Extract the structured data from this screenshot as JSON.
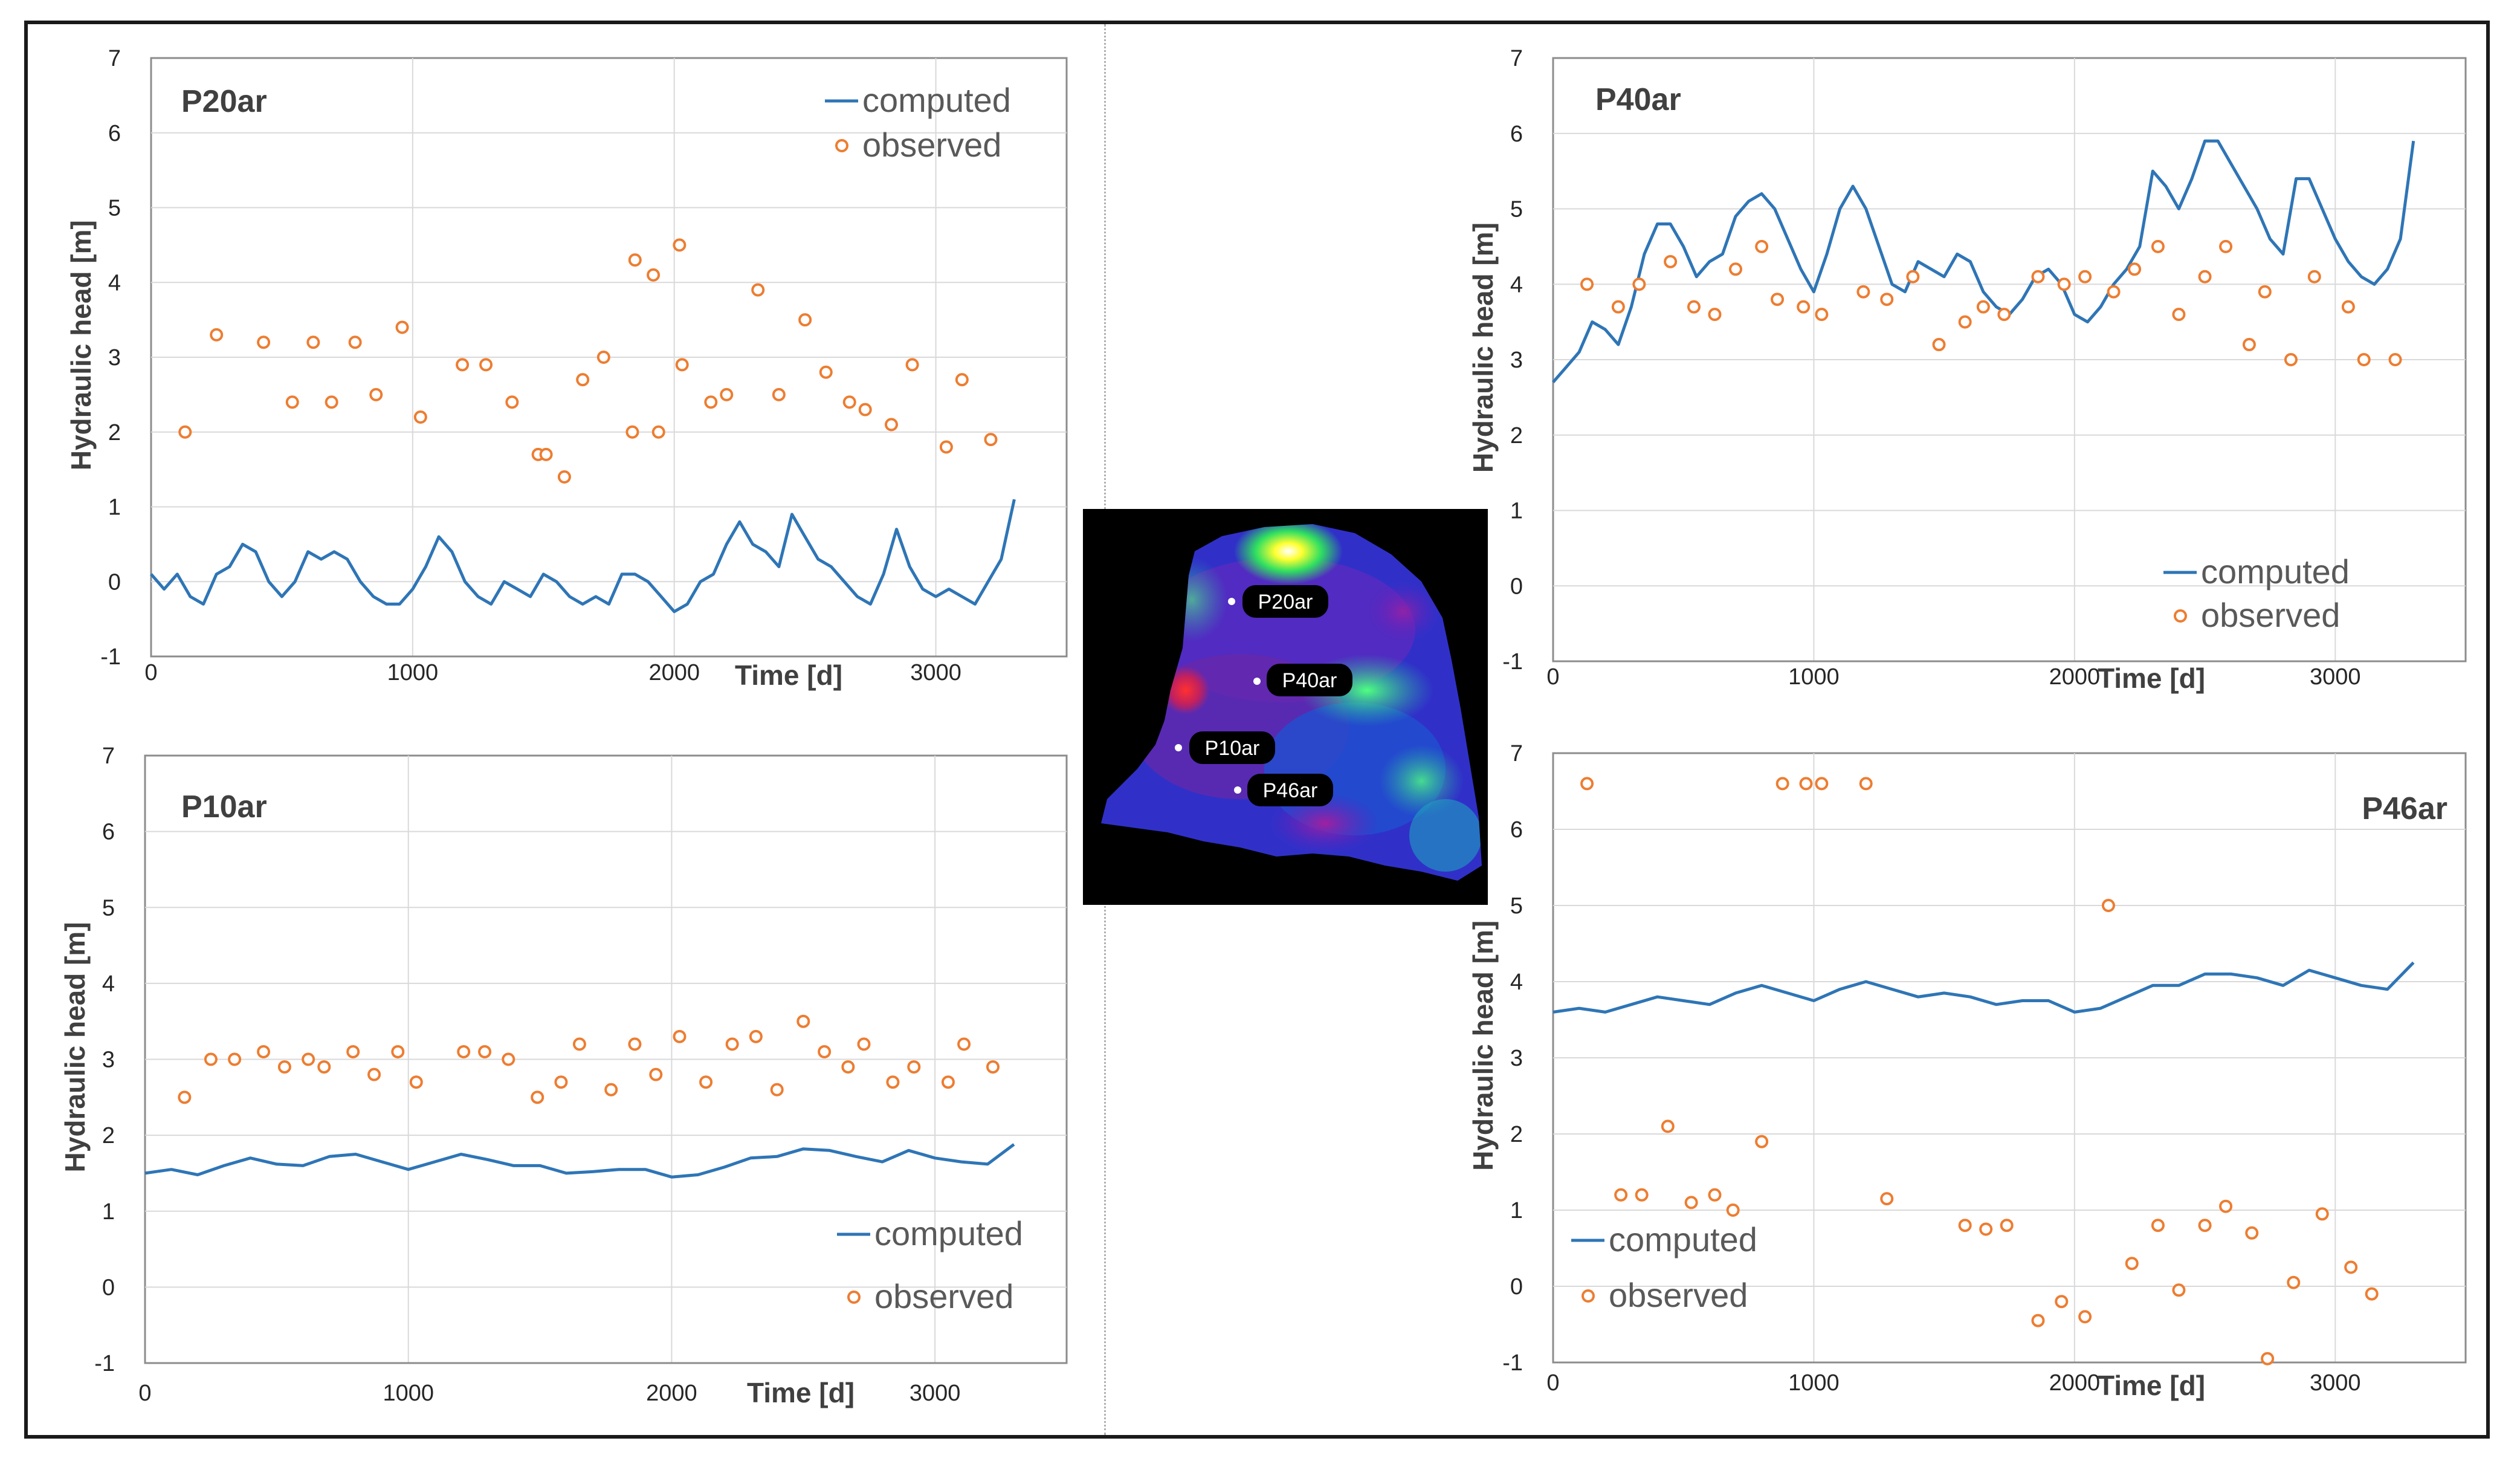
{
  "chart_data": [
    {
      "type": "line",
      "panel_id": "P20ar",
      "title": "P20ar",
      "xlabel": "Time [d]",
      "ylabel": "Hydraulic head [m]",
      "xlim": [
        0,
        3500
      ],
      "ylim": [
        -1,
        7
      ],
      "xticks": [
        0,
        1000,
        2000,
        3000
      ],
      "yticks": [
        -1,
        0,
        1,
        2,
        3,
        4,
        5,
        6,
        7
      ],
      "legend_position": "top-right",
      "series": [
        {
          "name": "computed",
          "style": "line",
          "x": [
            0,
            50,
            100,
            150,
            200,
            250,
            300,
            350,
            400,
            450,
            500,
            550,
            600,
            650,
            700,
            750,
            800,
            850,
            900,
            950,
            1000,
            1050,
            1100,
            1150,
            1200,
            1250,
            1300,
            1350,
            1400,
            1450,
            1500,
            1550,
            1600,
            1650,
            1700,
            1750,
            1800,
            1850,
            1900,
            1950,
            2000,
            2050,
            2100,
            2150,
            2200,
            2250,
            2300,
            2350,
            2400,
            2450,
            2500,
            2550,
            2600,
            2650,
            2700,
            2750,
            2800,
            2850,
            2900,
            2950,
            3000,
            3050,
            3100,
            3150,
            3200,
            3250,
            3300
          ],
          "values": [
            0.1,
            -0.1,
            0.1,
            -0.2,
            -0.3,
            0.1,
            0.2,
            0.5,
            0.4,
            0.0,
            -0.2,
            0.0,
            0.4,
            0.3,
            0.4,
            0.3,
            0.0,
            -0.2,
            -0.3,
            -0.3,
            -0.1,
            0.2,
            0.6,
            0.4,
            0.0,
            -0.2,
            -0.3,
            0.0,
            -0.1,
            -0.2,
            0.1,
            0.0,
            -0.2,
            -0.3,
            -0.2,
            -0.3,
            0.1,
            0.1,
            0.0,
            -0.2,
            -0.4,
            -0.3,
            0.0,
            0.1,
            0.5,
            0.8,
            0.5,
            0.4,
            0.2,
            0.9,
            0.6,
            0.3,
            0.2,
            0.0,
            -0.2,
            -0.3,
            0.1,
            0.7,
            0.2,
            -0.1,
            -0.2,
            -0.1,
            -0.2,
            -0.3,
            0.0,
            0.3,
            1.1
          ]
        },
        {
          "name": "observed",
          "style": "markers",
          "x": [
            130,
            250,
            430,
            540,
            620,
            690,
            780,
            860,
            960,
            1030,
            1190,
            1280,
            1380,
            1480,
            1510,
            1580,
            1650,
            1730,
            1840,
            1850,
            1920,
            1940,
            2020,
            2030,
            2140,
            2200,
            2320,
            2400,
            2500,
            2580,
            2670,
            2730,
            2830,
            2910,
            3040,
            3100,
            3210
          ],
          "values": [
            2.0,
            3.3,
            3.2,
            2.4,
            3.2,
            2.4,
            3.2,
            2.5,
            3.4,
            2.2,
            2.9,
            2.9,
            2.4,
            1.7,
            1.7,
            1.4,
            2.7,
            3.0,
            2.0,
            4.3,
            4.1,
            2.0,
            4.5,
            2.9,
            2.4,
            2.5,
            3.9,
            2.5,
            3.5,
            2.8,
            2.4,
            2.3,
            2.1,
            2.9,
            1.8,
            2.7,
            1.9
          ]
        }
      ]
    },
    {
      "type": "line",
      "panel_id": "P40ar",
      "title": "P40ar",
      "xlabel": "Time [d]",
      "ylabel": "Hydraulic head [m]",
      "xlim": [
        0,
        3500
      ],
      "ylim": [
        -1,
        7
      ],
      "xticks": [
        0,
        1000,
        2000,
        3000
      ],
      "yticks": [
        -1,
        0,
        1,
        2,
        3,
        4,
        5,
        6,
        7
      ],
      "legend_position": "bottom-right",
      "series": [
        {
          "name": "computed",
          "style": "line",
          "x": [
            0,
            50,
            100,
            150,
            200,
            250,
            300,
            350,
            400,
            450,
            500,
            550,
            600,
            650,
            700,
            750,
            800,
            850,
            900,
            950,
            1000,
            1050,
            1100,
            1150,
            1200,
            1250,
            1300,
            1350,
            1400,
            1450,
            1500,
            1550,
            1600,
            1650,
            1700,
            1750,
            1800,
            1850,
            1900,
            1950,
            2000,
            2050,
            2100,
            2150,
            2200,
            2250,
            2300,
            2350,
            2400,
            2450,
            2500,
            2550,
            2600,
            2650,
            2700,
            2750,
            2800,
            2850,
            2900,
            2950,
            3000,
            3050,
            3100,
            3150,
            3200,
            3250,
            3300
          ],
          "values": [
            2.7,
            2.9,
            3.1,
            3.5,
            3.4,
            3.2,
            3.7,
            4.4,
            4.8,
            4.8,
            4.5,
            4.1,
            4.3,
            4.4,
            4.9,
            5.1,
            5.2,
            5.0,
            4.6,
            4.2,
            3.9,
            4.4,
            5.0,
            5.3,
            5.0,
            4.5,
            4.0,
            3.9,
            4.3,
            4.2,
            4.1,
            4.4,
            4.3,
            3.9,
            3.7,
            3.6,
            3.8,
            4.1,
            4.2,
            4.0,
            3.6,
            3.5,
            3.7,
            4.0,
            4.2,
            4.5,
            5.5,
            5.3,
            5.0,
            5.4,
            5.9,
            5.9,
            5.6,
            5.3,
            5.0,
            4.6,
            4.4,
            5.4,
            5.4,
            5.0,
            4.6,
            4.3,
            4.1,
            4.0,
            4.2,
            4.6,
            5.9
          ]
        },
        {
          "name": "observed",
          "style": "markers",
          "x": [
            130,
            250,
            330,
            450,
            540,
            620,
            700,
            800,
            860,
            960,
            1030,
            1190,
            1280,
            1380,
            1480,
            1580,
            1650,
            1730,
            1860,
            1960,
            2040,
            2150,
            2230,
            2320,
            2400,
            2500,
            2580,
            2670,
            2730,
            2830,
            2920,
            3050,
            3110,
            3230
          ],
          "values": [
            4.0,
            3.7,
            4.0,
            4.3,
            3.7,
            3.6,
            4.2,
            4.5,
            3.8,
            3.7,
            3.6,
            3.9,
            3.8,
            4.1,
            3.2,
            3.5,
            3.7,
            3.6,
            4.1,
            4.0,
            4.1,
            3.9,
            4.2,
            4.5,
            3.6,
            4.1,
            4.5,
            3.2,
            3.9,
            3.0,
            4.1,
            3.7,
            3.0,
            3.0
          ]
        }
      ]
    },
    {
      "type": "line",
      "panel_id": "P10ar",
      "title": "P10ar",
      "xlabel": "Time [d]",
      "ylabel": "Hydraulic head [m]",
      "xlim": [
        0,
        3500
      ],
      "ylim": [
        -1,
        7
      ],
      "xticks": [
        0,
        1000,
        2000,
        3000
      ],
      "yticks": [
        -1,
        0,
        1,
        2,
        3,
        4,
        5,
        6,
        7
      ],
      "legend_position": "bottom-right",
      "series": [
        {
          "name": "computed",
          "style": "line",
          "x": [
            0,
            100,
            200,
            300,
            400,
            500,
            600,
            700,
            800,
            900,
            1000,
            1100,
            1200,
            1300,
            1400,
            1500,
            1600,
            1700,
            1800,
            1900,
            2000,
            2100,
            2200,
            2300,
            2400,
            2500,
            2600,
            2700,
            2800,
            2900,
            3000,
            3100,
            3200,
            3300
          ],
          "values": [
            1.5,
            1.55,
            1.48,
            1.6,
            1.7,
            1.62,
            1.6,
            1.72,
            1.75,
            1.65,
            1.55,
            1.65,
            1.75,
            1.68,
            1.6,
            1.6,
            1.5,
            1.52,
            1.55,
            1.55,
            1.45,
            1.48,
            1.58,
            1.7,
            1.72,
            1.82,
            1.8,
            1.72,
            1.65,
            1.8,
            1.7,
            1.65,
            1.62,
            1.88
          ]
        },
        {
          "name": "observed",
          "style": "markers",
          "x": [
            150,
            250,
            340,
            450,
            530,
            620,
            680,
            790,
            870,
            960,
            1030,
            1210,
            1290,
            1380,
            1490,
            1580,
            1650,
            1770,
            1860,
            1940,
            2030,
            2130,
            2230,
            2320,
            2400,
            2500,
            2580,
            2670,
            2730,
            2840,
            2920,
            3050,
            3110,
            3220
          ],
          "values": [
            2.5,
            3.0,
            3.0,
            3.1,
            2.9,
            3.0,
            2.9,
            3.1,
            2.8,
            3.1,
            2.7,
            3.1,
            3.1,
            3.0,
            2.5,
            2.7,
            3.2,
            2.6,
            3.2,
            2.8,
            3.3,
            2.7,
            3.2,
            3.3,
            2.6,
            3.5,
            3.1,
            2.9,
            3.2,
            2.7,
            2.9,
            2.7,
            3.2,
            2.9
          ]
        }
      ]
    },
    {
      "type": "line",
      "panel_id": "P46ar",
      "title": "P46ar",
      "xlabel": "Time [d]",
      "ylabel": "Hydraulic head [m]",
      "xlim": [
        0,
        3500
      ],
      "ylim": [
        -1,
        7
      ],
      "xticks": [
        0,
        1000,
        2000,
        3000
      ],
      "yticks": [
        -1,
        0,
        1,
        2,
        3,
        4,
        5,
        6,
        7
      ],
      "legend_position": "bottom-left",
      "series": [
        {
          "name": "computed",
          "style": "line",
          "x": [
            0,
            100,
            200,
            300,
            400,
            500,
            600,
            700,
            800,
            900,
            1000,
            1100,
            1200,
            1300,
            1400,
            1500,
            1600,
            1700,
            1800,
            1900,
            2000,
            2100,
            2200,
            2300,
            2400,
            2500,
            2600,
            2700,
            2800,
            2900,
            3000,
            3100,
            3200,
            3300
          ],
          "values": [
            3.6,
            3.65,
            3.6,
            3.7,
            3.8,
            3.75,
            3.7,
            3.85,
            3.95,
            3.85,
            3.75,
            3.9,
            4.0,
            3.9,
            3.8,
            3.85,
            3.8,
            3.7,
            3.75,
            3.75,
            3.6,
            3.65,
            3.8,
            3.95,
            3.95,
            4.1,
            4.1,
            4.05,
            3.95,
            4.15,
            4.05,
            3.95,
            3.9,
            4.25
          ]
        },
        {
          "name": "observed",
          "style": "markers",
          "x": [
            130,
            260,
            340,
            440,
            530,
            620,
            690,
            800,
            880,
            970,
            1030,
            1200,
            1280,
            1580,
            1660,
            1740,
            1860,
            1950,
            2040,
            2130,
            2220,
            2320,
            2400,
            2500,
            2580,
            2680,
            2740,
            2840,
            2950,
            3060,
            3140
          ],
          "values": [
            6.6,
            1.2,
            1.2,
            2.1,
            1.1,
            1.2,
            1.0,
            1.9,
            6.6,
            6.6,
            6.6,
            6.6,
            1.15,
            0.8,
            0.75,
            0.8,
            -0.45,
            -0.2,
            -0.4,
            5.0,
            0.3,
            0.8,
            -0.05,
            0.8,
            1.05,
            0.7,
            -0.95,
            0.05,
            0.95,
            0.25,
            -0.1
          ]
        }
      ]
    }
  ],
  "inset_map": {
    "well_labels": [
      "P20ar",
      "P40ar",
      "P10ar",
      "P46ar"
    ]
  },
  "colors": {
    "computed": "#2e75b6",
    "observed": "#ed7d31",
    "frame": "#8c8c8c",
    "grid": "#d9d9d9"
  }
}
